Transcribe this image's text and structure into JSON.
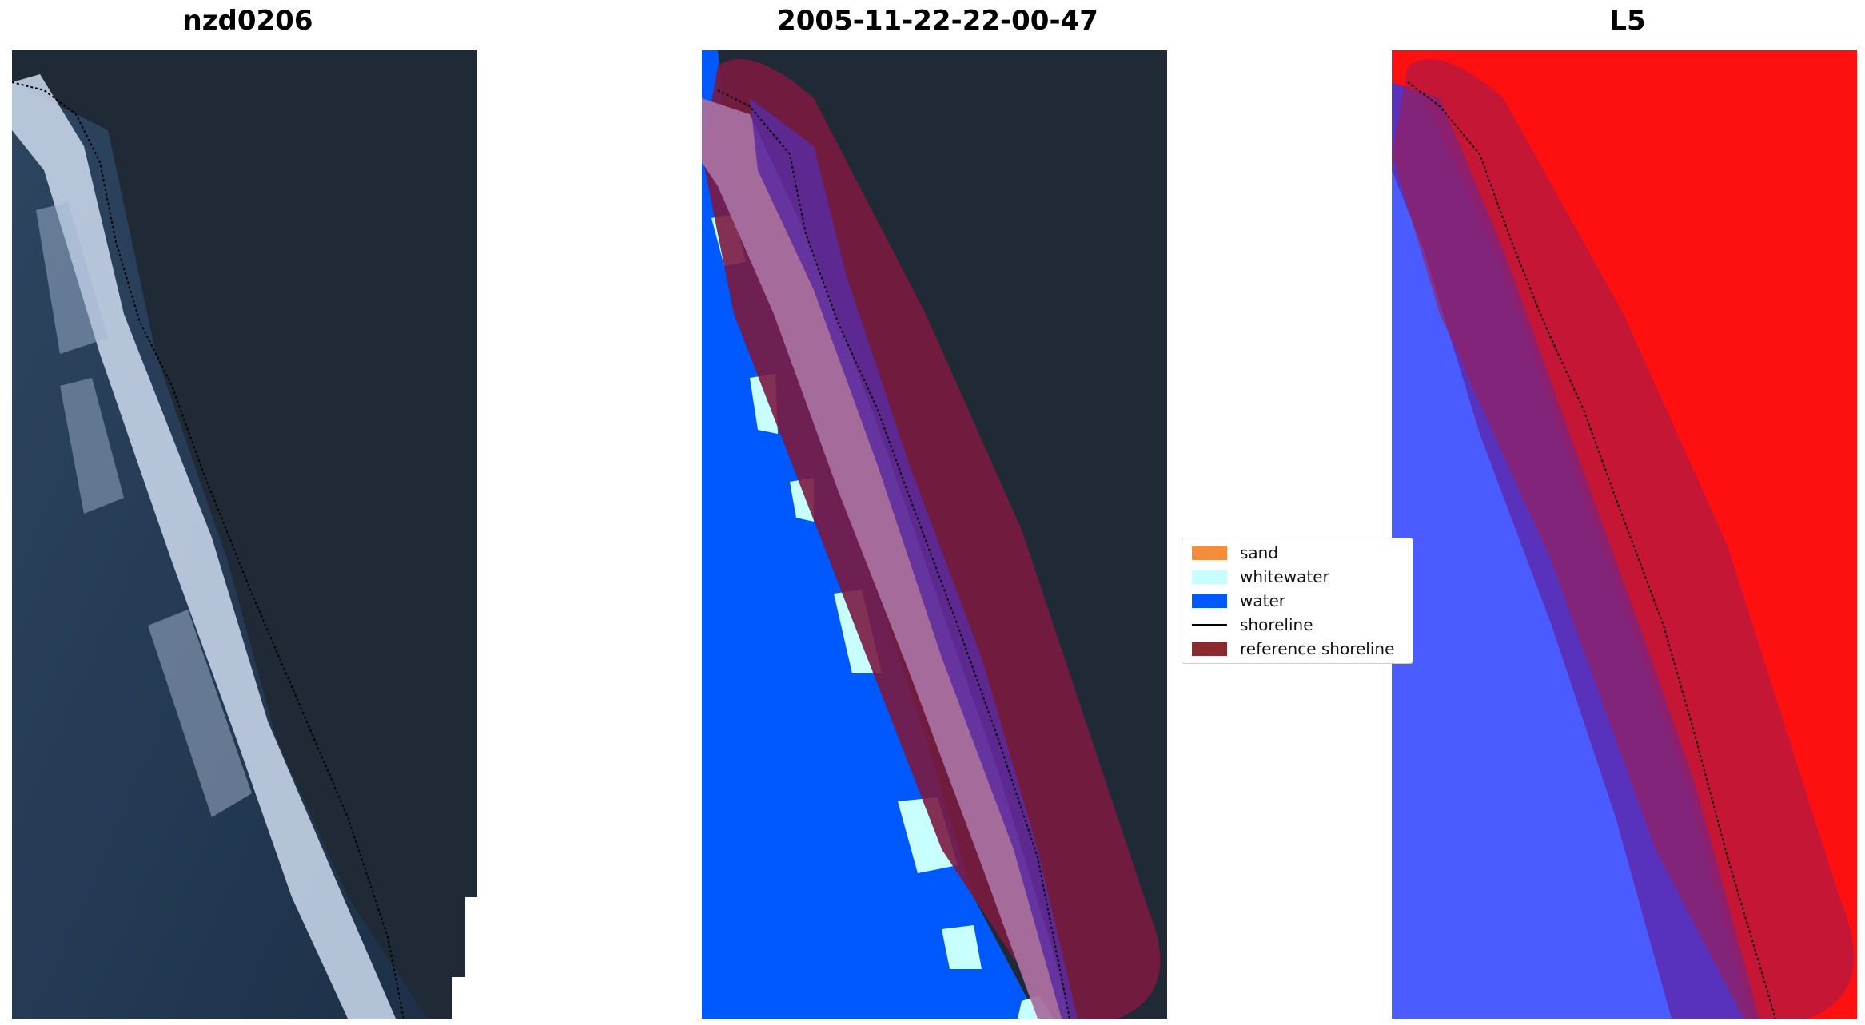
{
  "panels": [
    {
      "title": "nzd0206"
    },
    {
      "title": "2005-11-22-22-00-47"
    },
    {
      "title": "L5"
    }
  ],
  "legend": {
    "items": [
      {
        "label": "sand",
        "color": "#f48c3a",
        "kind": "patch"
      },
      {
        "label": "whitewater",
        "color": "#c8ffff",
        "kind": "patch"
      },
      {
        "label": "water",
        "color": "#0059ff",
        "kind": "patch"
      },
      {
        "label": "shoreline",
        "color": "#000000",
        "kind": "line"
      },
      {
        "label": "reference shoreline",
        "color": "#8b2a2e",
        "kind": "patch"
      }
    ]
  },
  "colors": {
    "land_dark": "#1f2a36",
    "sea_dark": "#253a52",
    "surf_white": "#d8e4f4",
    "reference_buffer": "#7a1a40",
    "index_positive": "#ff1010",
    "index_negative": "#4a5cff"
  }
}
